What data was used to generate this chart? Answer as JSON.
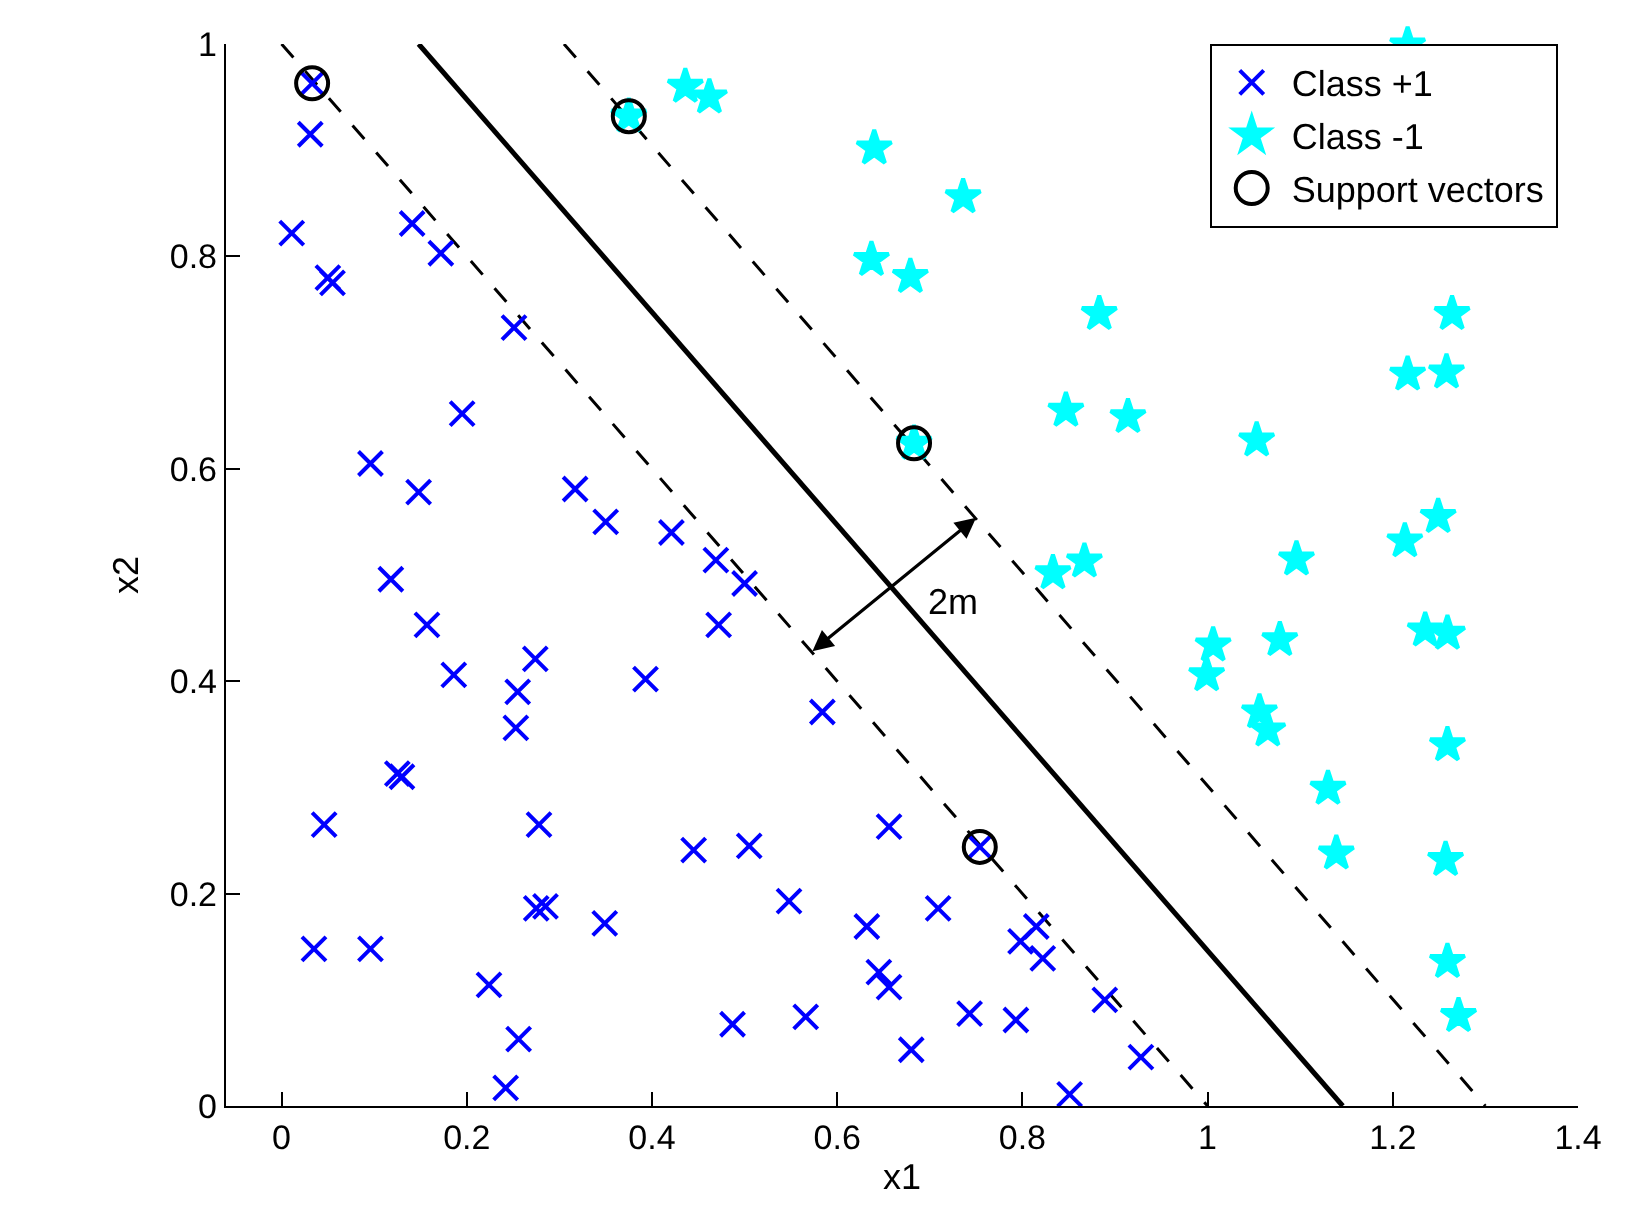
{
  "chart_data": {
    "type": "scatter",
    "xlabel": "x1",
    "ylabel": "x2",
    "xlim": [
      -0.06,
      1.4
    ],
    "xticks": [
      0,
      0.2,
      0.4,
      0.6,
      0.8,
      1,
      1.2,
      1.4
    ],
    "ylim": [
      0,
      1
    ],
    "yticks": [
      0,
      0.2,
      0.4,
      0.6,
      0.8,
      1
    ],
    "legend": "top right",
    "annotations": [
      {
        "text": "2m",
        "x": 0.66,
        "y": 0.49
      }
    ],
    "series": [
      {
        "name": "Class +1",
        "color": "#0000ff",
        "marker": "cross",
        "x": [
          0.033,
          0.031,
          0.011,
          0.05,
          0.055,
          0.141,
          0.172,
          0.251,
          0.195,
          0.096,
          0.148,
          0.317,
          0.35,
          0.421,
          0.469,
          0.118,
          0.157,
          0.186,
          0.274,
          0.255,
          0.253,
          0.125,
          0.13,
          0.046,
          0.278,
          0.393,
          0.472,
          0.275,
          0.285,
          0.349,
          0.445,
          0.035,
          0.096,
          0.224,
          0.256,
          0.242,
          0.487,
          0.5,
          0.584,
          0.505,
          0.656,
          0.754,
          0.548,
          0.632,
          0.709,
          0.645,
          0.656,
          0.798,
          0.815,
          0.822,
          0.889,
          0.928,
          0.566,
          0.743,
          0.793,
          0.68,
          0.851
        ],
        "values": [
          0.963,
          0.915,
          0.822,
          0.78,
          0.775,
          0.831,
          0.803,
          0.733,
          0.652,
          0.605,
          0.578,
          0.581,
          0.55,
          0.54,
          0.514,
          0.496,
          0.453,
          0.406,
          0.421,
          0.39,
          0.356,
          0.313,
          0.31,
          0.265,
          0.265,
          0.402,
          0.453,
          0.186,
          0.188,
          0.172,
          0.241,
          0.148,
          0.148,
          0.114,
          0.063,
          0.017,
          0.077,
          0.492,
          0.371,
          0.245,
          0.263,
          0.244,
          0.193,
          0.169,
          0.186,
          0.126,
          0.112,
          0.155,
          0.169,
          0.139,
          0.1,
          0.046,
          0.084,
          0.087,
          0.081,
          0.053,
          0.011
        ]
      },
      {
        "name": "Class -1",
        "color": "#00ffff",
        "marker": "star",
        "x": [
          0.436,
          0.462,
          0.375,
          0.64,
          0.736,
          0.637,
          0.679,
          0.883,
          0.847,
          0.914,
          0.683,
          0.833,
          0.867,
          1.216,
          1.264,
          1.216,
          1.258,
          1.053,
          1.249,
          1.213,
          1.096,
          1.006,
          0.999,
          1.078,
          1.235,
          1.259,
          1.056,
          1.065,
          1.259,
          1.13,
          1.139,
          1.257,
          1.259,
          1.271
        ],
        "values": [
          0.96,
          0.95,
          0.932,
          0.902,
          0.856,
          0.797,
          0.781,
          0.746,
          0.655,
          0.649,
          0.624,
          0.502,
          0.513,
          0.999,
          0.746,
          0.689,
          0.691,
          0.627,
          0.555,
          0.532,
          0.515,
          0.434,
          0.406,
          0.439,
          0.448,
          0.445,
          0.371,
          0.354,
          0.34,
          0.299,
          0.238,
          0.232,
          0.136,
          0.085
        ]
      },
      {
        "name": "Support vectors",
        "color": "#000000",
        "marker": "circle",
        "x": [
          0.033,
          0.375,
          0.683,
          0.754
        ],
        "values": [
          0.963,
          0.932,
          0.624,
          0.244
        ]
      },
      {
        "type": "line",
        "color": "#000000",
        "line_style": "solid",
        "x": [
          0.148,
          1.146
        ],
        "values": [
          1,
          0
        ]
      },
      {
        "type": "line",
        "color": "#000000",
        "line_style": "dashed",
        "x": [
          0.0,
          1.0
        ],
        "values": [
          1,
          0
        ]
      },
      {
        "type": "line",
        "color": "#000000",
        "line_style": "dashed",
        "x": [
          0.305,
          1.3
        ],
        "values": [
          1,
          0
        ]
      }
    ]
  }
}
